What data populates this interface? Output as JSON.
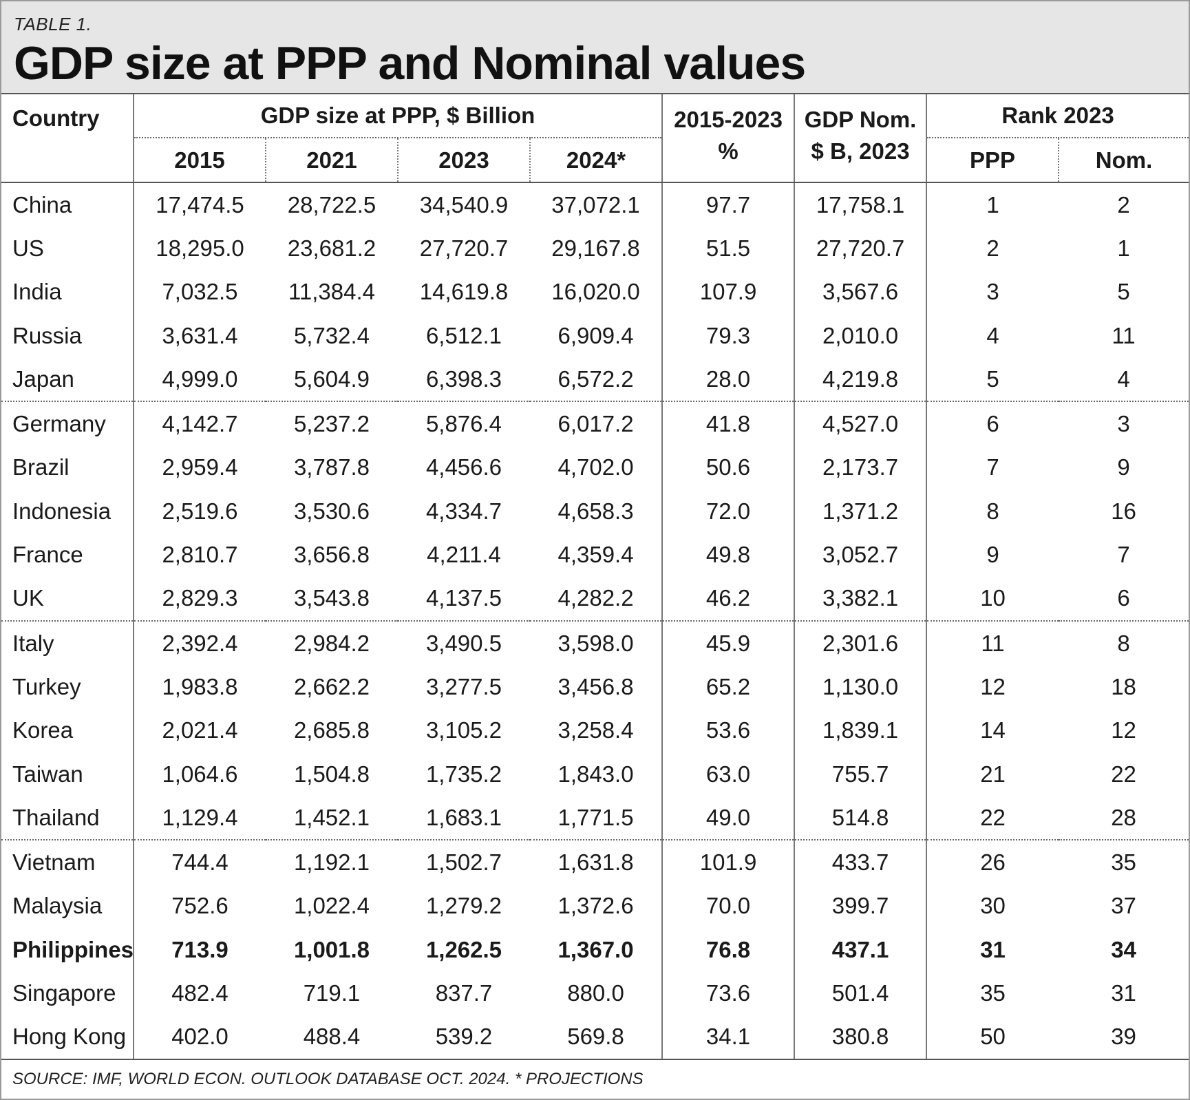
{
  "table_label": "TABLE 1.",
  "title": "GDP size at PPP and Nominal values",
  "headers": {
    "country": "Country",
    "ppp_group": "GDP size at PPP, $ Billion",
    "years": [
      "2015",
      "2021",
      "2023",
      "2024*"
    ],
    "growth_line1": "2015-2023",
    "growth_line2": "%",
    "nominal_line1": "GDP Nom.",
    "nominal_line2": "$ B, 2023",
    "rank_group": "Rank 2023",
    "rank_ppp": "PPP",
    "rank_nom": "Nom."
  },
  "rows": [
    {
      "country": "China",
      "y2015": "17,474.5",
      "y2021": "28,722.5",
      "y2023": "34,540.9",
      "y2024": "37,072.1",
      "growth": "97.7",
      "nominal": "17,758.1",
      "rank_ppp": "1",
      "rank_nom": "2"
    },
    {
      "country": "US",
      "y2015": "18,295.0",
      "y2021": "23,681.2",
      "y2023": "27,720.7",
      "y2024": "29,167.8",
      "growth": "51.5",
      "nominal": "27,720.7",
      "rank_ppp": "2",
      "rank_nom": "1"
    },
    {
      "country": "India",
      "y2015": "7,032.5",
      "y2021": "11,384.4",
      "y2023": "14,619.8",
      "y2024": "16,020.0",
      "growth": "107.9",
      "nominal": "3,567.6",
      "rank_ppp": "3",
      "rank_nom": "5"
    },
    {
      "country": "Russia",
      "y2015": "3,631.4",
      "y2021": "5,732.4",
      "y2023": "6,512.1",
      "y2024": "6,909.4",
      "growth": "79.3",
      "nominal": "2,010.0",
      "rank_ppp": "4",
      "rank_nom": "11"
    },
    {
      "country": "Japan",
      "y2015": "4,999.0",
      "y2021": "5,604.9",
      "y2023": "6,398.3",
      "y2024": "6,572.2",
      "growth": "28.0",
      "nominal": "4,219.8",
      "rank_ppp": "5",
      "rank_nom": "4"
    },
    {
      "country": "Germany",
      "y2015": "4,142.7",
      "y2021": "5,237.2",
      "y2023": "5,876.4",
      "y2024": "6,017.2",
      "growth": "41.8",
      "nominal": "4,527.0",
      "rank_ppp": "6",
      "rank_nom": "3"
    },
    {
      "country": "Brazil",
      "y2015": "2,959.4",
      "y2021": "3,787.8",
      "y2023": "4,456.6",
      "y2024": "4,702.0",
      "growth": "50.6",
      "nominal": "2,173.7",
      "rank_ppp": "7",
      "rank_nom": "9"
    },
    {
      "country": "Indonesia",
      "y2015": "2,519.6",
      "y2021": "3,530.6",
      "y2023": "4,334.7",
      "y2024": "4,658.3",
      "growth": "72.0",
      "nominal": "1,371.2",
      "rank_ppp": "8",
      "rank_nom": "16"
    },
    {
      "country": "France",
      "y2015": "2,810.7",
      "y2021": "3,656.8",
      "y2023": "4,211.4",
      "y2024": "4,359.4",
      "growth": "49.8",
      "nominal": "3,052.7",
      "rank_ppp": "9",
      "rank_nom": "7"
    },
    {
      "country": "UK",
      "y2015": "2,829.3",
      "y2021": "3,543.8",
      "y2023": "4,137.5",
      "y2024": "4,282.2",
      "growth": "46.2",
      "nominal": "3,382.1",
      "rank_ppp": "10",
      "rank_nom": "6"
    },
    {
      "country": "Italy",
      "y2015": "2,392.4",
      "y2021": "2,984.2",
      "y2023": "3,490.5",
      "y2024": "3,598.0",
      "growth": "45.9",
      "nominal": "2,301.6",
      "rank_ppp": "11",
      "rank_nom": "8"
    },
    {
      "country": "Turkey",
      "y2015": "1,983.8",
      "y2021": "2,662.2",
      "y2023": "3,277.5",
      "y2024": "3,456.8",
      "growth": "65.2",
      "nominal": "1,130.0",
      "rank_ppp": "12",
      "rank_nom": "18"
    },
    {
      "country": "Korea",
      "y2015": "2,021.4",
      "y2021": "2,685.8",
      "y2023": "3,105.2",
      "y2024": "3,258.4",
      "growth": "53.6",
      "nominal": "1,839.1",
      "rank_ppp": "14",
      "rank_nom": "12"
    },
    {
      "country": "Taiwan",
      "y2015": "1,064.6",
      "y2021": "1,504.8",
      "y2023": "1,735.2",
      "y2024": "1,843.0",
      "growth": "63.0",
      "nominal": "755.7",
      "rank_ppp": "21",
      "rank_nom": "22"
    },
    {
      "country": "Thailand",
      "y2015": "1,129.4",
      "y2021": "1,452.1",
      "y2023": "1,683.1",
      "y2024": "1,771.5",
      "growth": "49.0",
      "nominal": "514.8",
      "rank_ppp": "22",
      "rank_nom": "28"
    },
    {
      "country": "Vietnam",
      "y2015": "744.4",
      "y2021": "1,192.1",
      "y2023": "1,502.7",
      "y2024": "1,631.8",
      "growth": "101.9",
      "nominal": "433.7",
      "rank_ppp": "26",
      "rank_nom": "35"
    },
    {
      "country": "Malaysia",
      "y2015": "752.6",
      "y2021": "1,022.4",
      "y2023": "1,279.2",
      "y2024": "1,372.6",
      "growth": "70.0",
      "nominal": "399.7",
      "rank_ppp": "30",
      "rank_nom": "37"
    },
    {
      "country": "Philippines",
      "y2015": "713.9",
      "y2021": "1,001.8",
      "y2023": "1,262.5",
      "y2024": "1,367.0",
      "growth": "76.8",
      "nominal": "437.1",
      "rank_ppp": "31",
      "rank_nom": "34"
    },
    {
      "country": "Singapore",
      "y2015": "482.4",
      "y2021": "719.1",
      "y2023": "837.7",
      "y2024": "880.0",
      "growth": "73.6",
      "nominal": "501.4",
      "rank_ppp": "35",
      "rank_nom": "31"
    },
    {
      "country": "Hong Kong",
      "y2015": "402.0",
      "y2021": "488.4",
      "y2023": "539.2",
      "y2024": "569.8",
      "growth": "34.1",
      "nominal": "380.8",
      "rank_ppp": "50",
      "rank_nom": "39"
    }
  ],
  "highlighted_country": "Philippines",
  "source": "SOURCE: IMF, WORLD ECON. OUTLOOK DATABASE OCT. 2024.  * PROJECTIONS"
}
